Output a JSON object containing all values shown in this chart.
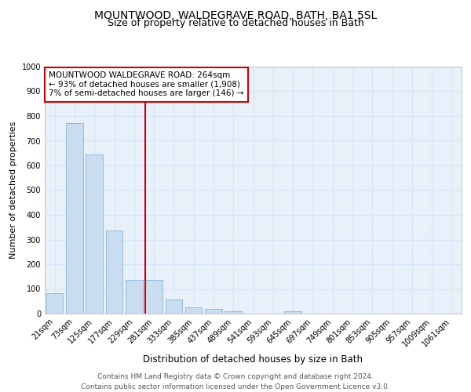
{
  "title1": "MOUNTWOOD, WALDEGRAVE ROAD, BATH, BA1 5SL",
  "title2": "Size of property relative to detached houses in Bath",
  "xlabel": "Distribution of detached houses by size in Bath",
  "ylabel": "Number of detached properties",
  "bar_labels": [
    "21sqm",
    "73sqm",
    "125sqm",
    "177sqm",
    "229sqm",
    "281sqm",
    "333sqm",
    "385sqm",
    "437sqm",
    "489sqm",
    "541sqm",
    "593sqm",
    "645sqm",
    "697sqm",
    "749sqm",
    "801sqm",
    "853sqm",
    "905sqm",
    "957sqm",
    "1009sqm",
    "1061sqm"
  ],
  "bar_values": [
    83,
    770,
    643,
    335,
    135,
    135,
    58,
    25,
    18,
    8,
    0,
    0,
    10,
    0,
    0,
    0,
    0,
    0,
    0,
    0,
    0
  ],
  "bar_color": "#c9ddf0",
  "bar_edge_color": "#8ab4d8",
  "vline_x_idx": 5,
  "vline_color": "#cc0000",
  "annotation_lines": [
    "MOUNTWOOD WALDEGRAVE ROAD: 264sqm",
    "← 93% of detached houses are smaller (1,908)",
    "7% of semi-detached houses are larger (146) →"
  ],
  "annotation_box_color": "#ffffff",
  "annotation_box_edge": "#cc0000",
  "ylim": [
    0,
    1000
  ],
  "yticks": [
    0,
    100,
    200,
    300,
    400,
    500,
    600,
    700,
    800,
    900,
    1000
  ],
  "grid_color": "#d5e5f5",
  "bg_color": "#e8f0fa",
  "footer": "Contains HM Land Registry data © Crown copyright and database right 2024.\nContains public sector information licensed under the Open Government Licence v3.0.",
  "title1_fontsize": 10,
  "title2_fontsize": 9,
  "xlabel_fontsize": 8.5,
  "ylabel_fontsize": 8,
  "tick_fontsize": 7,
  "annotation_fontsize": 7.5,
  "footer_fontsize": 6.5
}
